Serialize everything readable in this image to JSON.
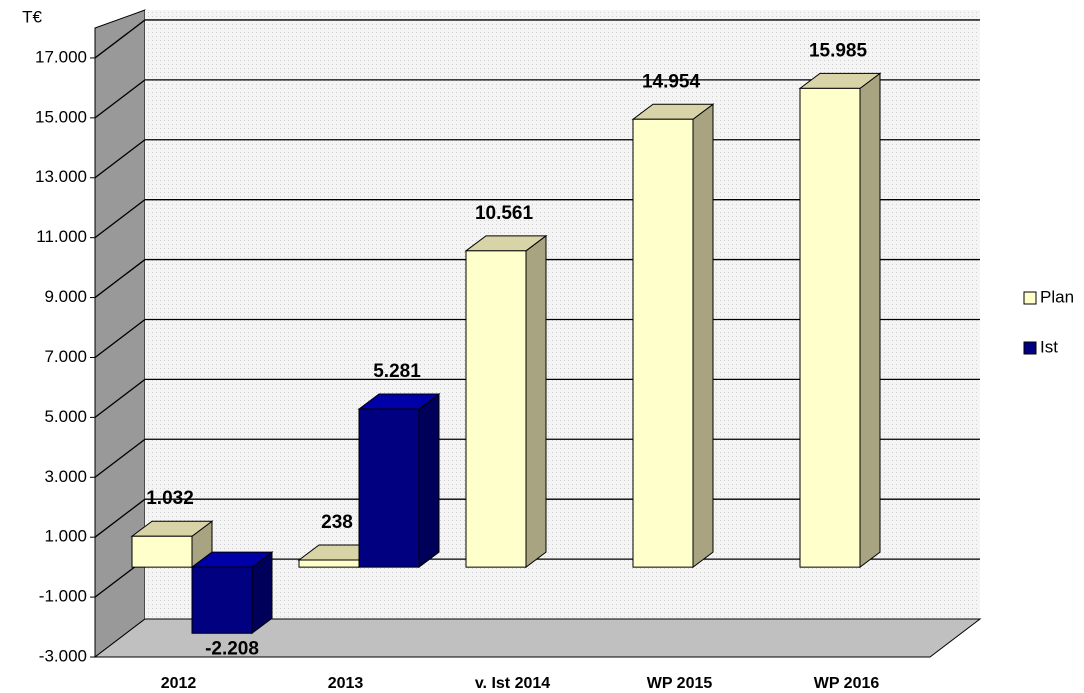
{
  "chart_data": {
    "type": "bar3d",
    "ylabel": "T€",
    "categories": [
      "2012",
      "2013",
      "v. Ist 2014",
      "WP 2015",
      "WP 2016"
    ],
    "series": [
      {
        "name": "Plan",
        "color": "#ffffcc",
        "values": [
          1032,
          238,
          10561,
          14954,
          15985
        ],
        "value_labels": [
          "1.032",
          "238",
          "10.561",
          "14.954",
          "15.985"
        ]
      },
      {
        "name": "Ist",
        "color": "#000080",
        "values": [
          -2208,
          5281,
          null,
          null,
          null
        ],
        "value_labels": [
          "-2.208",
          "5.281",
          null,
          null,
          null
        ]
      }
    ],
    "ylim": [
      -3000,
      18000
    ],
    "yticks": [
      {
        "value": -3000,
        "label": "-3.000"
      },
      {
        "value": -1000,
        "label": "-1.000"
      },
      {
        "value": 1000,
        "label": "1.000"
      },
      {
        "value": 3000,
        "label": "3.000"
      },
      {
        "value": 5000,
        "label": "5.000"
      },
      {
        "value": 7000,
        "label": "7.000"
      },
      {
        "value": 9000,
        "label": "9.000"
      },
      {
        "value": 11000,
        "label": "11.000"
      },
      {
        "value": 13000,
        "label": "13.000"
      },
      {
        "value": 15000,
        "label": "15.000"
      },
      {
        "value": 17000,
        "label": "17.000"
      }
    ],
    "grid": true,
    "legend": "right"
  }
}
